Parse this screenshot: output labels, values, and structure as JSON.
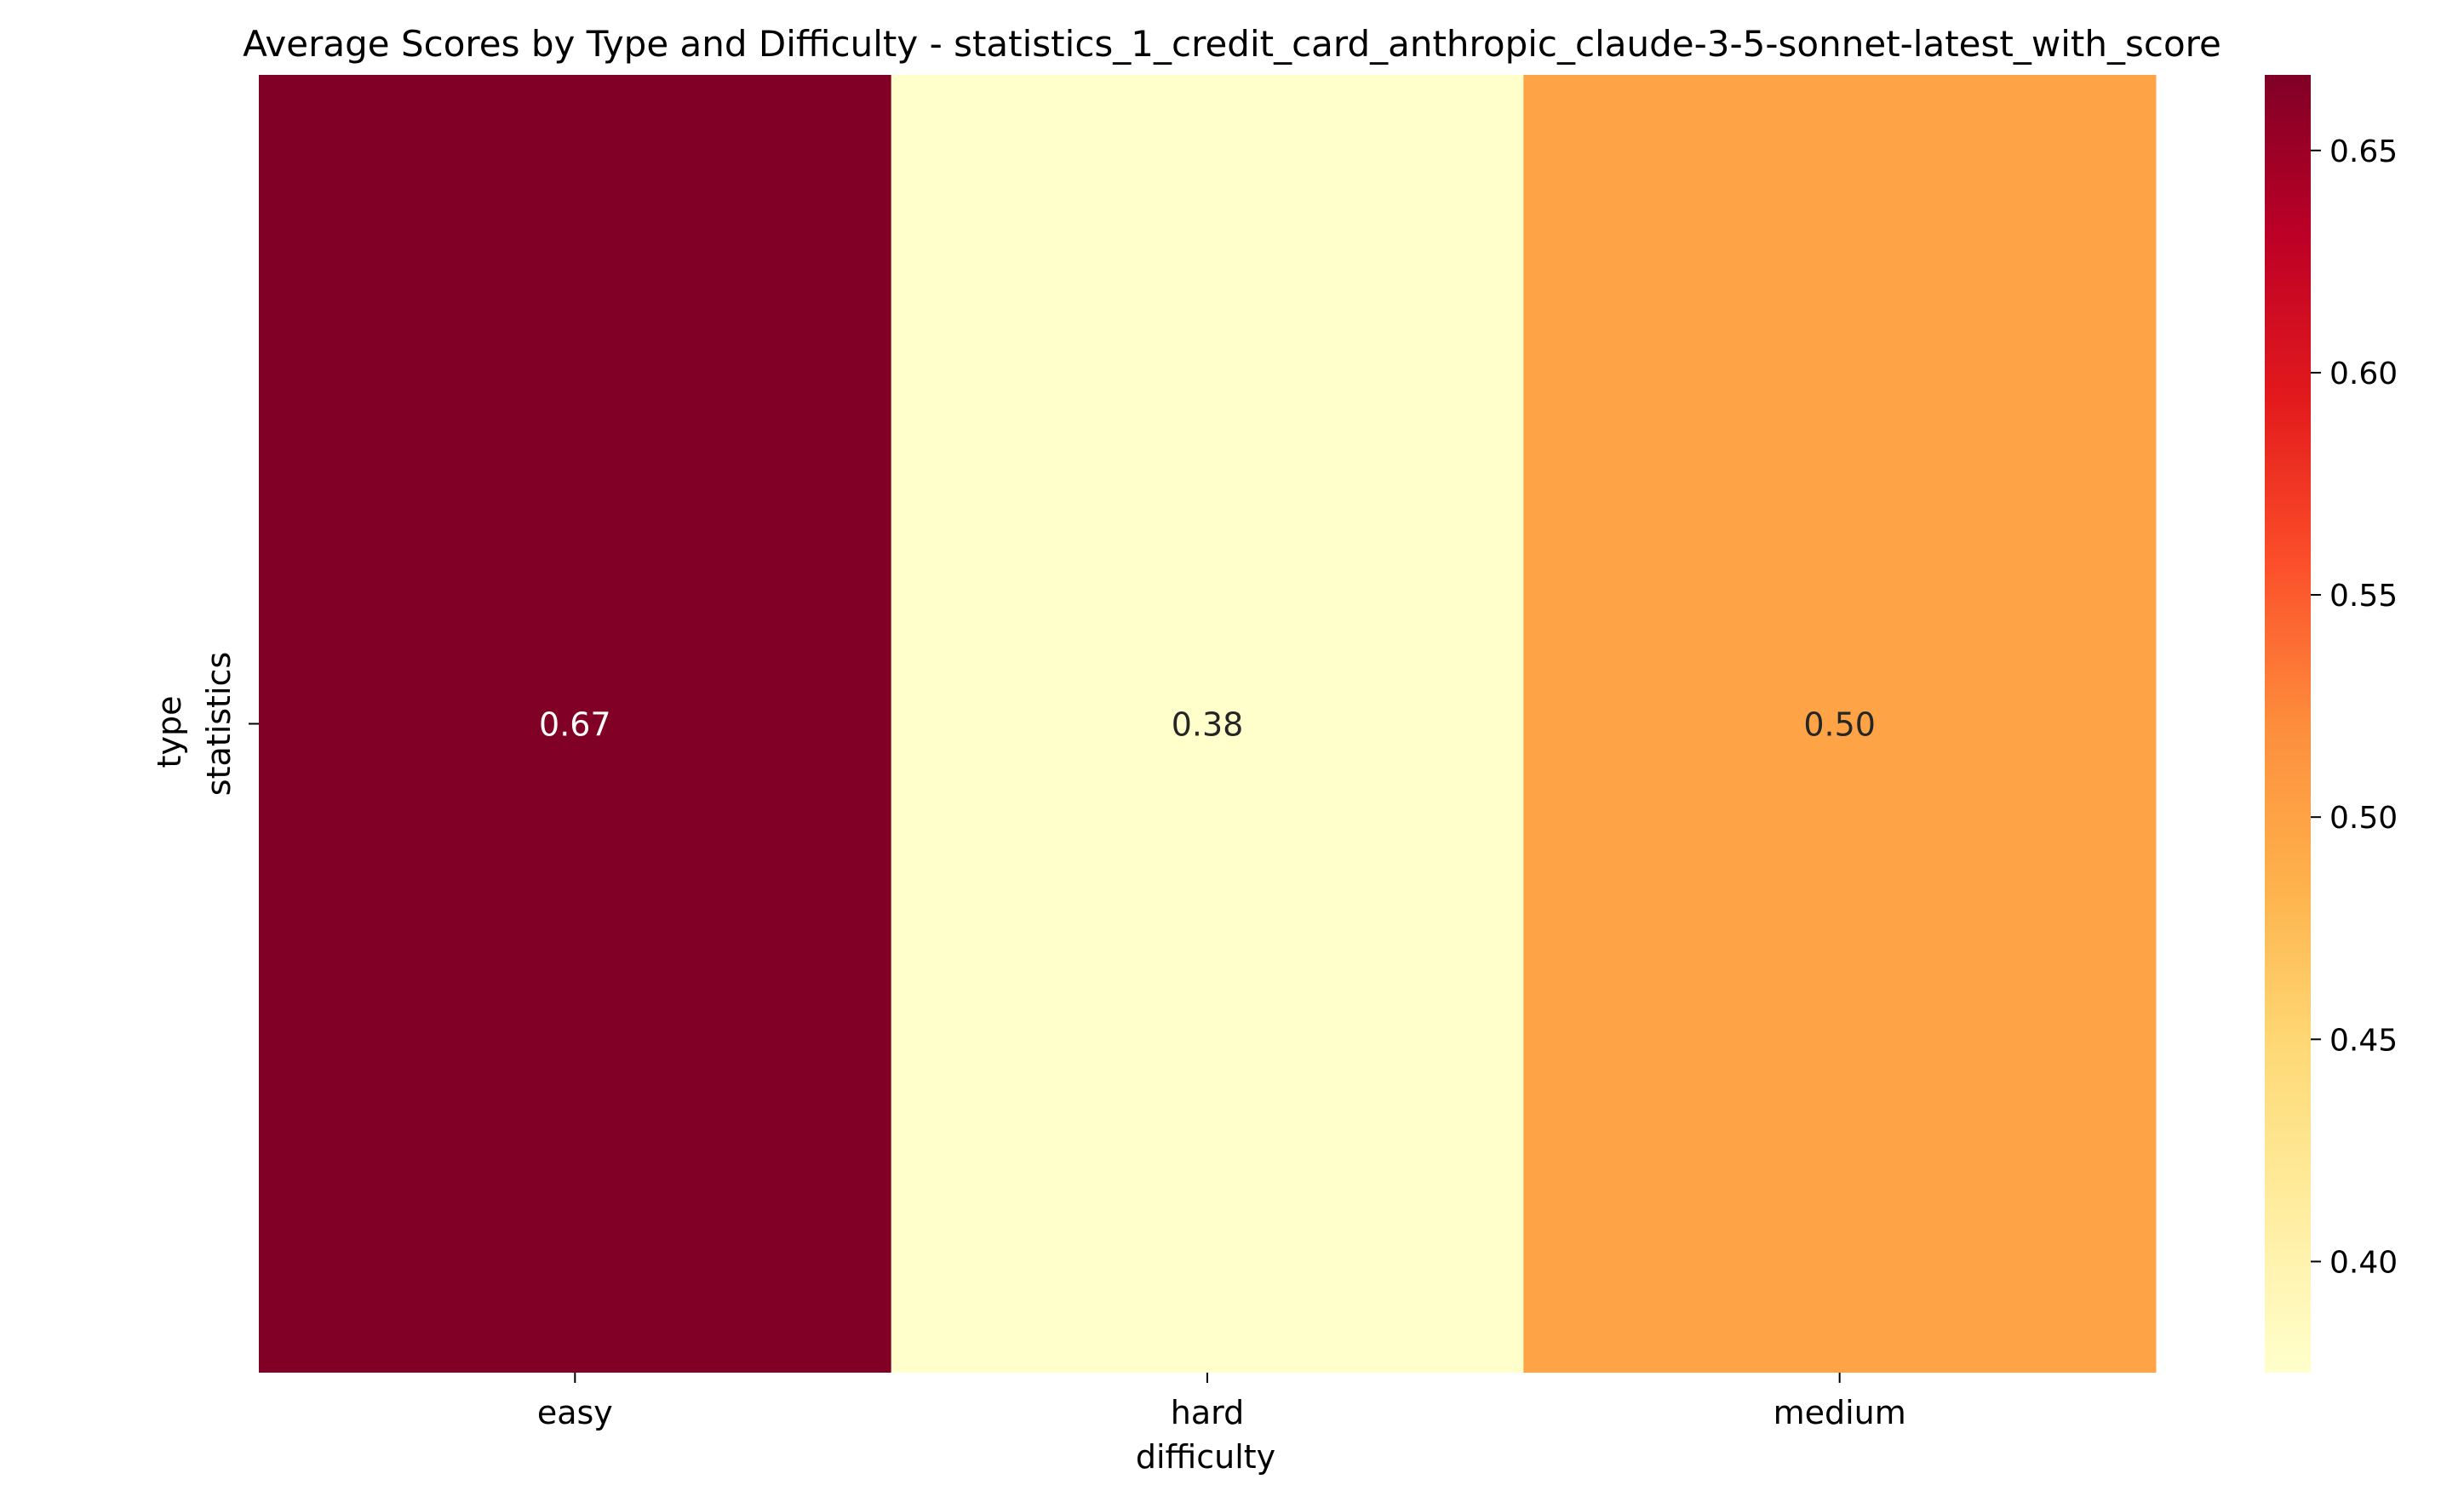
{
  "chart_data": {
    "type": "heatmap",
    "title": "Average Scores by Type and Difficulty - statistics_1_credit_card_anthropic_claude-3-5-sonnet-latest_with_score",
    "xlabel": "difficulty",
    "ylabel": "type",
    "x_categories": [
      "easy",
      "hard",
      "medium"
    ],
    "y_categories": [
      "statistics"
    ],
    "values": [
      [
        0.67,
        0.38,
        0.5
      ]
    ],
    "value_labels": [
      "0.67",
      "0.38",
      "0.50"
    ],
    "colormap": "YlOrRd",
    "vmin": 0.375,
    "vmax": 0.667,
    "colorbar_ticks": [
      0.4,
      0.45,
      0.5,
      0.55,
      0.6,
      0.65
    ],
    "colorbar_tick_labels": [
      "0.40",
      "0.45",
      "0.50",
      "0.55",
      "0.60",
      "0.65"
    ],
    "cell_colors": [
      "#800026",
      "#ffffcc",
      "#fea446"
    ],
    "annotation_text_colors": [
      "#ffffff",
      "#262626",
      "#262626"
    ]
  }
}
